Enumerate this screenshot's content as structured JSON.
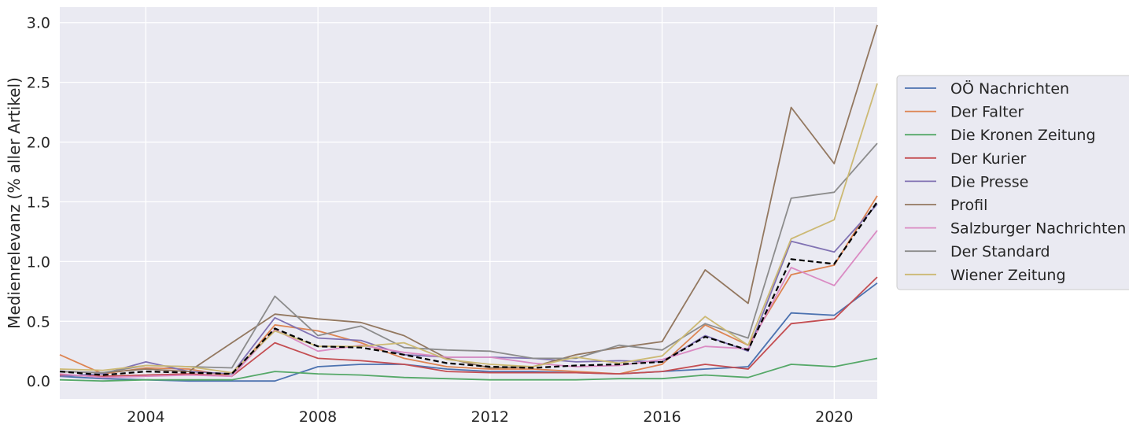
{
  "chart_data": {
    "type": "line",
    "title": "",
    "xlabel": "",
    "ylabel": "Medienrelevanz (% aller Artikel)",
    "xlim": [
      2002,
      2021
    ],
    "ylim": [
      -0.15,
      3.13
    ],
    "xticks": [
      2004,
      2008,
      2012,
      2016,
      2020
    ],
    "yticks": [
      0.0,
      0.5,
      1.0,
      1.5,
      2.0,
      2.5,
      3.0
    ],
    "ytick_labels": [
      "0.0",
      "0.5",
      "1.0",
      "1.5",
      "2.0",
      "2.5",
      "3.0"
    ],
    "grid": true,
    "legend_position": "center-right outside",
    "x": [
      2002,
      2003,
      2004,
      2005,
      2006,
      2007,
      2008,
      2009,
      2010,
      2011,
      2012,
      2013,
      2014,
      2015,
      2016,
      2017,
      2018,
      2019,
      2020,
      2021
    ],
    "series": [
      {
        "name": "OÖ Nachrichten",
        "color": "#4c72b0",
        "values": [
          0.04,
          0.02,
          0.01,
          0.0,
          0.0,
          0.0,
          0.12,
          0.14,
          0.14,
          0.1,
          0.08,
          0.08,
          0.07,
          0.06,
          0.08,
          0.1,
          0.12,
          0.57,
          0.55,
          0.82
        ]
      },
      {
        "name": "Der Falter",
        "color": "#dd8452",
        "values": [
          0.22,
          0.06,
          0.11,
          0.1,
          0.04,
          0.47,
          0.42,
          0.32,
          0.19,
          0.12,
          0.1,
          0.1,
          0.08,
          0.06,
          0.14,
          0.47,
          0.3,
          0.89,
          0.97,
          1.55
        ]
      },
      {
        "name": "Die Kronen Zeitung",
        "color": "#55a868",
        "values": [
          0.01,
          0.0,
          0.01,
          0.01,
          0.01,
          0.08,
          0.06,
          0.05,
          0.03,
          0.02,
          0.01,
          0.01,
          0.01,
          0.02,
          0.02,
          0.05,
          0.03,
          0.14,
          0.12,
          0.19
        ]
      },
      {
        "name": "Der Kurier",
        "color": "#c44e52",
        "values": [
          0.05,
          0.04,
          0.05,
          0.06,
          0.04,
          0.32,
          0.19,
          0.17,
          0.14,
          0.08,
          0.07,
          0.07,
          0.07,
          0.06,
          0.08,
          0.14,
          0.1,
          0.48,
          0.52,
          0.87
        ]
      },
      {
        "name": "Die Presse",
        "color": "#8172b3",
        "values": [
          0.04,
          0.06,
          0.16,
          0.08,
          0.06,
          0.53,
          0.36,
          0.34,
          0.22,
          0.2,
          0.2,
          0.19,
          0.16,
          0.17,
          0.16,
          0.38,
          0.25,
          1.17,
          1.08,
          1.48
        ]
      },
      {
        "name": "Profil",
        "color": "#937860",
        "values": [
          0.08,
          0.07,
          0.1,
          0.08,
          0.32,
          0.56,
          0.52,
          0.49,
          0.38,
          0.19,
          0.11,
          0.12,
          0.22,
          0.28,
          0.33,
          0.93,
          0.65,
          2.29,
          1.82,
          2.98
        ]
      },
      {
        "name": "Salzburger Nachrichten",
        "color": "#da8bc3",
        "values": [
          0.06,
          0.03,
          0.04,
          0.05,
          0.04,
          0.43,
          0.25,
          0.3,
          0.24,
          0.2,
          0.2,
          0.15,
          0.12,
          0.13,
          0.18,
          0.29,
          0.27,
          0.95,
          0.8,
          1.26
        ]
      },
      {
        "name": "Der Standard",
        "color": "#8c8c8c",
        "values": [
          0.08,
          0.07,
          0.13,
          0.12,
          0.11,
          0.71,
          0.38,
          0.46,
          0.28,
          0.26,
          0.25,
          0.19,
          0.19,
          0.3,
          0.26,
          0.48,
          0.36,
          1.53,
          1.58,
          1.99
        ]
      },
      {
        "name": "Wiener Zeitung",
        "color": "#ccb974",
        "values": [
          0.1,
          0.09,
          0.13,
          0.12,
          0.07,
          0.42,
          0.29,
          0.29,
          0.32,
          0.18,
          0.14,
          0.12,
          0.2,
          0.15,
          0.21,
          0.54,
          0.3,
          1.19,
          1.35,
          2.49
        ]
      },
      {
        "name": "",
        "color": "#000000",
        "dashed": true,
        "values": [
          0.08,
          0.05,
          0.08,
          0.07,
          0.06,
          0.44,
          0.29,
          0.28,
          0.22,
          0.15,
          0.12,
          0.11,
          0.13,
          0.14,
          0.16,
          0.37,
          0.26,
          1.02,
          0.98,
          1.5
        ]
      }
    ]
  }
}
